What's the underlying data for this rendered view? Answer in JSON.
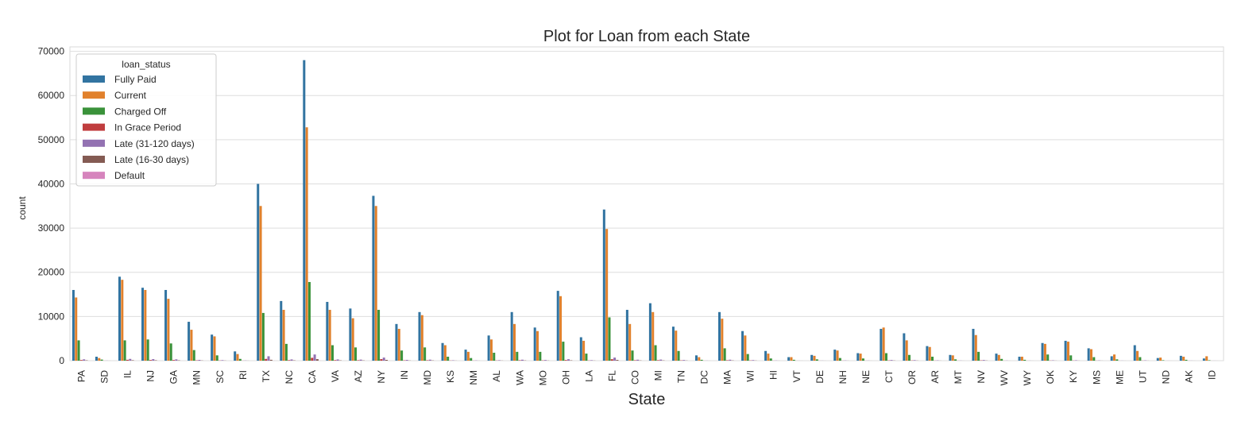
{
  "chart_data": {
    "type": "bar",
    "title": "Plot for Loan from each State",
    "xlabel": "State",
    "ylabel": "count",
    "ylim": [
      0,
      71000
    ],
    "yticks": [
      0,
      10000,
      20000,
      30000,
      40000,
      50000,
      60000,
      70000
    ],
    "grid": true,
    "legend": {
      "title": "loan_status",
      "placement": "top-left"
    },
    "categories": [
      "PA",
      "SD",
      "IL",
      "NJ",
      "GA",
      "MN",
      "SC",
      "RI",
      "TX",
      "NC",
      "CA",
      "VA",
      "AZ",
      "NY",
      "IN",
      "MD",
      "KS",
      "NM",
      "AL",
      "WA",
      "MO",
      "OH",
      "LA",
      "FL",
      "CO",
      "MI",
      "TN",
      "DC",
      "MA",
      "WI",
      "HI",
      "VT",
      "DE",
      "NH",
      "NE",
      "CT",
      "OR",
      "AR",
      "MT",
      "NV",
      "WV",
      "WY",
      "OK",
      "KY",
      "MS",
      "ME",
      "UT",
      "ND",
      "AK",
      "ID"
    ],
    "series": [
      {
        "name": "Fully Paid",
        "color": "#3274a1",
        "values": [
          16000,
          900,
          19000,
          16500,
          16000,
          8800,
          5900,
          2100,
          40000,
          13500,
          68000,
          13300,
          11800,
          37300,
          8300,
          11000,
          4000,
          2500,
          5700,
          11000,
          7500,
          15800,
          5300,
          34200,
          11500,
          13000,
          7700,
          1200,
          11000,
          6700,
          2200,
          800,
          1300,
          2500,
          1700,
          7200,
          6200,
          3300,
          1300,
          7200,
          1600,
          900,
          4000,
          4500,
          2800,
          1000,
          3500,
          600,
          1100,
          500
        ]
      },
      {
        "name": "Current",
        "color": "#e1812c",
        "values": [
          14300,
          600,
          18300,
          16000,
          14000,
          7000,
          5500,
          1500,
          35000,
          11500,
          52800,
          11500,
          9600,
          35000,
          7200,
          10300,
          3500,
          2000,
          4800,
          8300,
          6700,
          14600,
          4500,
          29800,
          8300,
          11000,
          6800,
          800,
          9500,
          5700,
          1600,
          800,
          1100,
          2300,
          1600,
          7500,
          4600,
          3100,
          1200,
          5800,
          1300,
          900,
          3800,
          4300,
          2600,
          1400,
          2200,
          700,
          900,
          1000
        ]
      },
      {
        "name": "Charged Off",
        "color": "#3a923a",
        "values": [
          4600,
          250,
          4600,
          4800,
          3900,
          2400,
          1200,
          400,
          10800,
          3800,
          17800,
          3500,
          3000,
          11500,
          2300,
          3000,
          900,
          600,
          1800,
          2000,
          2000,
          4300,
          1600,
          9800,
          2300,
          3500,
          2200,
          200,
          2800,
          1500,
          500,
          200,
          300,
          600,
          500,
          1700,
          1300,
          900,
          300,
          2000,
          400,
          200,
          1400,
          1200,
          800,
          300,
          800,
          100,
          200,
          100
        ]
      },
      {
        "name": "In Grace Period",
        "color": "#c03d3e",
        "values": [
          150,
          10,
          200,
          150,
          150,
          80,
          50,
          20,
          400,
          130,
          650,
          130,
          110,
          350,
          80,
          100,
          40,
          25,
          50,
          100,
          70,
          150,
          50,
          330,
          100,
          120,
          70,
          10,
          100,
          60,
          20,
          10,
          15,
          25,
          15,
          70,
          60,
          30,
          15,
          70,
          15,
          10,
          40,
          40,
          25,
          10,
          30,
          5,
          10,
          5
        ]
      },
      {
        "name": "Late (31-120 days)",
        "color": "#9372b2",
        "values": [
          300,
          20,
          400,
          350,
          300,
          180,
          120,
          40,
          1000,
          280,
          1400,
          280,
          240,
          700,
          170,
          230,
          80,
          50,
          110,
          220,
          150,
          330,
          110,
          700,
          220,
          250,
          150,
          20,
          220,
          130,
          40,
          15,
          25,
          50,
          30,
          150,
          120,
          70,
          30,
          150,
          30,
          20,
          80,
          90,
          55,
          20,
          70,
          10,
          20,
          10
        ]
      },
      {
        "name": "Late (16-30 days)",
        "color": "#845b53",
        "values": [
          80,
          5,
          100,
          90,
          80,
          45,
          30,
          10,
          200,
          70,
          350,
          70,
          60,
          180,
          40,
          60,
          20,
          12,
          30,
          55,
          40,
          80,
          30,
          170,
          55,
          60,
          40,
          5,
          55,
          35,
          10,
          5,
          6,
          12,
          8,
          40,
          30,
          18,
          8,
          40,
          8,
          5,
          20,
          22,
          14,
          5,
          18,
          3,
          5,
          3
        ]
      },
      {
        "name": "Default",
        "color": "#d684bd",
        "values": [
          5,
          0,
          5,
          5,
          5,
          3,
          2,
          1,
          10,
          4,
          15,
          4,
          3,
          8,
          2,
          3,
          1,
          1,
          2,
          3,
          2,
          4,
          2,
          8,
          3,
          3,
          2,
          0,
          3,
          2,
          1,
          0,
          0,
          1,
          0,
          2,
          2,
          1,
          0,
          2,
          0,
          0,
          1,
          1,
          1,
          0,
          1,
          0,
          0,
          0
        ]
      }
    ]
  }
}
